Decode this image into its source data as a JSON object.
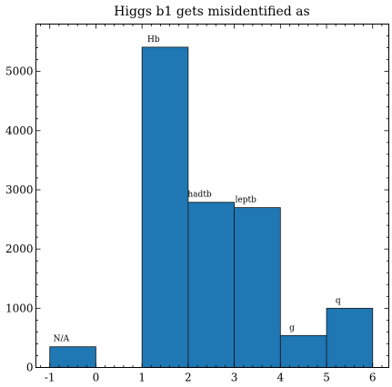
{
  "chart_data": {
    "type": "bar",
    "title": "Higgs b1 gets misidentified as",
    "xlabel": "",
    "ylabel": "",
    "xlim": [
      -1.3,
      6.35
    ],
    "ylim": [
      0,
      5800
    ],
    "x_ticks": [
      -1,
      0,
      1,
      2,
      3,
      4,
      5,
      6
    ],
    "y_ticks": [
      0,
      1000,
      2000,
      3000,
      4000,
      5000
    ],
    "x_minor_step": 0.2,
    "y_minor_step": 200,
    "bar_color": "#1f77b4",
    "bars": [
      {
        "x0": -1,
        "x1": 0,
        "value": 350,
        "label": "N/A"
      },
      {
        "x0": 1,
        "x1": 2,
        "value": 5410,
        "label": "Hb"
      },
      {
        "x0": 2,
        "x1": 3,
        "value": 2790,
        "label": "hadtb"
      },
      {
        "x0": 3,
        "x1": 4,
        "value": 2700,
        "label": "leptb"
      },
      {
        "x0": 4,
        "x1": 5,
        "value": 540,
        "label": "g"
      },
      {
        "x0": 5,
        "x1": 6,
        "value": 1000,
        "label": "q"
      }
    ],
    "grid": false,
    "legend": "none"
  }
}
